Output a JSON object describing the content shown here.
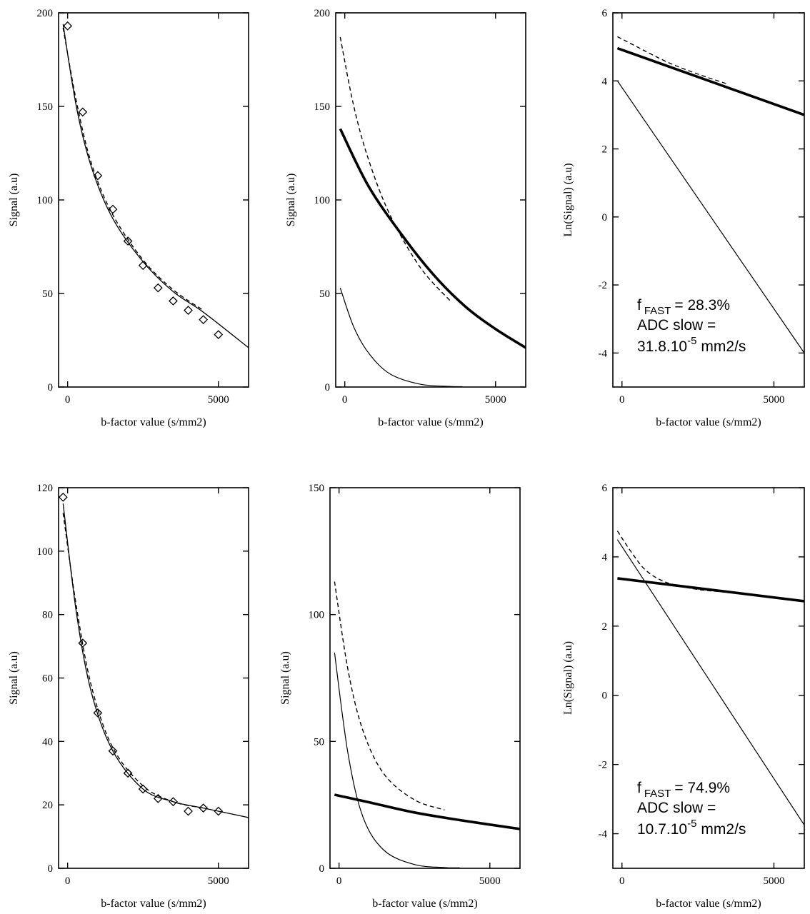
{
  "chart_data": [
    {
      "type": "scatter",
      "xlabel": "b-factor value (s/mm2)",
      "ylabel": "Signal (a.u)",
      "xlim": [
        -300,
        6000
      ],
      "ylim": [
        0,
        200
      ],
      "xticks": [
        0,
        5000
      ],
      "yticks": [
        0,
        50,
        100,
        150,
        200
      ],
      "series": [
        {
          "kind": "markers",
          "x": [
            0,
            500,
            1000,
            1500,
            2000,
            2500,
            3000,
            3500,
            4000,
            4500,
            5000
          ],
          "y": [
            193,
            147,
            113,
            95,
            78,
            65,
            53,
            46,
            41,
            36,
            28
          ]
        },
        {
          "kind": "fit-solid",
          "x": [
            -150,
            300,
            800,
            1500,
            2500,
            3500,
            4500,
            6000
          ],
          "y": [
            194,
            149,
            117,
            90,
            67,
            51,
            40,
            21
          ]
        },
        {
          "kind": "fit-dashed",
          "x": [
            -150,
            300,
            800,
            1500,
            2500,
            3500,
            4500
          ],
          "y": [
            192,
            152,
            119,
            92,
            68,
            52,
            41
          ]
        }
      ]
    },
    {
      "type": "line",
      "xlabel": "b-factor value (s/mm2)",
      "ylabel": "Signal (a.u)",
      "xlim": [
        -300,
        6000
      ],
      "ylim": [
        0,
        200
      ],
      "xticks": [
        0,
        5000
      ],
      "yticks": [
        0,
        50,
        100,
        150,
        200
      ],
      "series": [
        {
          "kind": "dashed",
          "x": [
            -150,
            300,
            800,
            1500,
            2500,
            3500
          ],
          "y": [
            187,
            150,
            121,
            92,
            64,
            46
          ]
        },
        {
          "kind": "thick",
          "x": [
            -150,
            800,
            2000,
            3000,
            4000,
            5000,
            6000
          ],
          "y": [
            138,
            107,
            79,
            59,
            43,
            31,
            21
          ]
        },
        {
          "kind": "thin",
          "x": [
            -150,
            300,
            800,
            1500,
            2500,
            3500,
            3900
          ],
          "y": [
            53,
            32,
            18,
            7,
            1.5,
            0.3,
            0.2
          ]
        }
      ]
    },
    {
      "type": "line",
      "xlabel": "b-factor value (s/mm2)",
      "ylabel": "Ln(Signal) (a.u)",
      "xlim": [
        -300,
        6000
      ],
      "ylim": [
        -5,
        6
      ],
      "xticks": [
        0,
        5000
      ],
      "yticks": [
        -4,
        -2,
        0,
        2,
        4,
        6
      ],
      "annotation": {
        "f_label": "f",
        "f_sub": "FAST",
        "f_value": "= 28.3%",
        "line2": "ADC slow =",
        "line3_base": "31.8.10",
        "line3_sup": "-5",
        "line3_unit": "mm2/s"
      },
      "series": [
        {
          "kind": "thick",
          "x": [
            -150,
            6000
          ],
          "y": [
            4.96,
            3.0
          ]
        },
        {
          "kind": "dashed",
          "x": [
            -150,
            500,
            1500,
            2500,
            3500
          ],
          "y": [
            5.3,
            5.0,
            4.55,
            4.2,
            3.9
          ]
        },
        {
          "kind": "thin",
          "x": [
            -150,
            6000
          ],
          "y": [
            4.0,
            -4.0
          ]
        }
      ]
    },
    {
      "type": "scatter",
      "xlabel": "b-factor value (s/mm2)",
      "ylabel": "Signal (a.u)",
      "xlim": [
        -300,
        6000
      ],
      "ylim": [
        0,
        120
      ],
      "xticks": [
        0,
        5000
      ],
      "yticks": [
        0,
        20,
        40,
        60,
        80,
        100,
        120
      ],
      "series": [
        {
          "kind": "markers",
          "x": [
            -150,
            500,
            1000,
            1500,
            2000,
            2500,
            3000,
            3500,
            4000,
            4500,
            5000
          ],
          "y": [
            117,
            71,
            49,
            37,
            30,
            25,
            22,
            21,
            18,
            19,
            18
          ]
        },
        {
          "kind": "fit-solid",
          "x": [
            -150,
            300,
            800,
            1500,
            2500,
            3500,
            4500,
            6000
          ],
          "y": [
            115,
            80,
            55,
            37,
            25,
            21,
            19,
            16
          ]
        },
        {
          "kind": "fit-dashed",
          "x": [
            -150,
            300,
            800,
            1500,
            2500,
            3500,
            4500
          ],
          "y": [
            112,
            82,
            57,
            38,
            26,
            21,
            19
          ]
        }
      ]
    },
    {
      "type": "line",
      "xlabel": "b-factor value (s/mm2)",
      "ylabel": "Signal (a.u)",
      "xlim": [
        -300,
        6000
      ],
      "ylim": [
        0,
        150
      ],
      "xticks": [
        0,
        5000
      ],
      "yticks": [
        0,
        50,
        100,
        150
      ],
      "series": [
        {
          "kind": "dashed",
          "x": [
            -150,
            300,
            800,
            1500,
            2500,
            3500
          ],
          "y": [
            113,
            78,
            54,
            37,
            27,
            23
          ]
        },
        {
          "kind": "thick",
          "x": [
            -150,
            1000,
            2500,
            4000,
            6000
          ],
          "y": [
            29,
            26,
            22,
            19,
            15.5
          ]
        },
        {
          "kind": "thin",
          "x": [
            -150,
            300,
            800,
            1500,
            2500,
            3500,
            4000
          ],
          "y": [
            85,
            45,
            20,
            7,
            1.5,
            0.3,
            0.2
          ]
        }
      ]
    },
    {
      "type": "line",
      "xlabel": "b-factor value (s/mm2)",
      "ylabel": "Ln(Signal) (a.u)",
      "xlim": [
        -300,
        6000
      ],
      "ylim": [
        -5,
        6
      ],
      "xticks": [
        0,
        5000
      ],
      "yticks": [
        -4,
        -2,
        0,
        2,
        4,
        6
      ],
      "annotation": {
        "f_label": "f",
        "f_sub": "FAST",
        "f_value": "= 74.9%",
        "line2": "ADC slow =",
        "line3_base": "10.7.10",
        "line3_sup": "-5",
        "line3_unit": "mm2/s"
      },
      "series": [
        {
          "kind": "thick",
          "x": [
            -150,
            6000
          ],
          "y": [
            3.38,
            2.72
          ]
        },
        {
          "kind": "dashed",
          "x": [
            -150,
            300,
            800,
            1500,
            2500,
            3500
          ],
          "y": [
            4.75,
            4.15,
            3.6,
            3.25,
            3.06,
            2.98
          ]
        },
        {
          "kind": "thin",
          "x": [
            -150,
            6000
          ],
          "y": [
            4.5,
            -3.75
          ]
        }
      ]
    }
  ]
}
